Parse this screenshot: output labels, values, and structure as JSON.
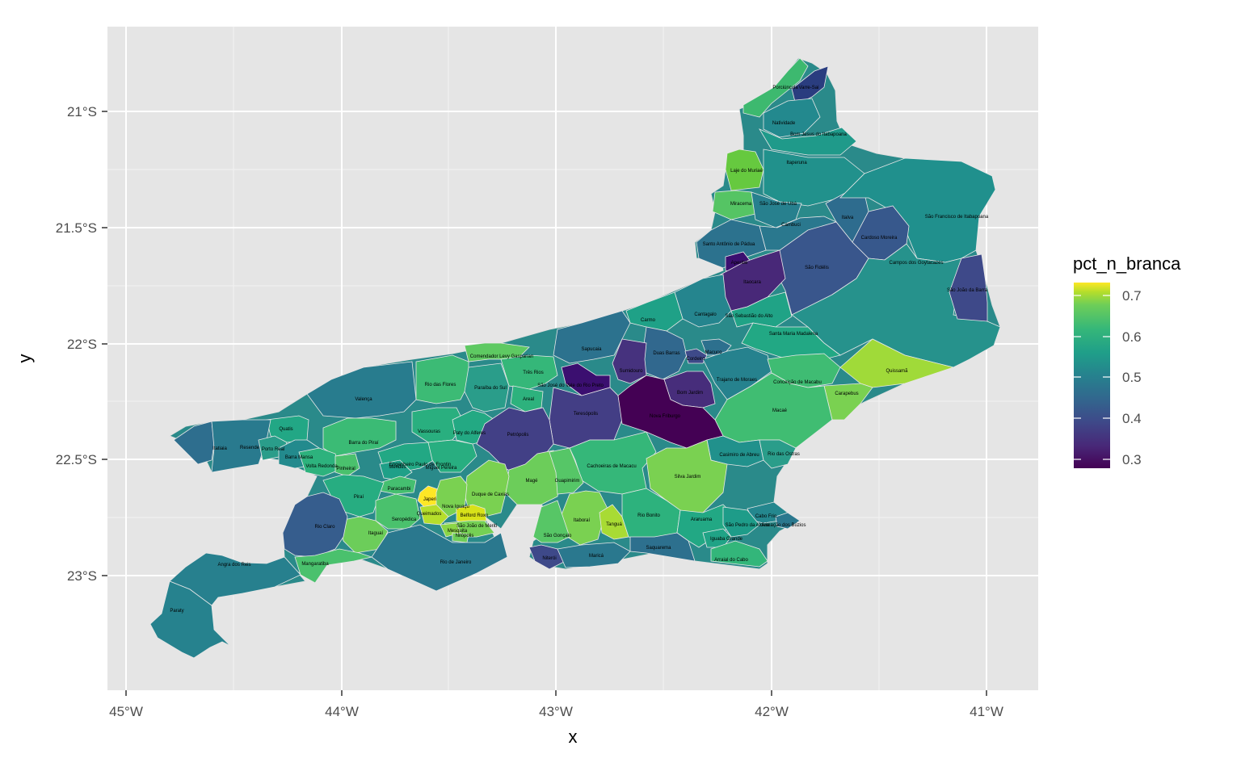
{
  "map": {
    "x_axis_title": "x",
    "y_axis_title": "y",
    "x_ticks": [
      "45°W",
      "44°W",
      "43°W",
      "42°W",
      "41°W"
    ],
    "y_ticks": [
      "21°S",
      "21.5°S",
      "22°S",
      "22.5°S",
      "23°S"
    ],
    "colors": {
      "panel": "#e5e5e5",
      "grid": "#ffffff",
      "outline": "#e0e0e0",
      "state_fill": "#2a8a8a"
    }
  },
  "legend": {
    "title": "pct_n_branca",
    "labels": [
      "0.7",
      "0.6",
      "0.5",
      "0.4",
      "0.3"
    ],
    "scale": "viridis",
    "range": [
      0.28,
      0.72
    ]
  },
  "municipalities": [
    {
      "name": "Porciúncula",
      "color": "#3db96f"
    },
    {
      "name": "Varre-Sai",
      "color": "#2a3d7f"
    },
    {
      "name": "Natividade",
      "color": "#23898e"
    },
    {
      "name": "Bom Jesus do Itabapoana",
      "color": "#1f9a8a"
    },
    {
      "name": "Laje do Muriaé",
      "color": "#66c93f"
    },
    {
      "name": "Itaperuna",
      "color": "#21918c"
    },
    {
      "name": "Miracema",
      "color": "#55c464"
    },
    {
      "name": "São José de Ubá",
      "color": "#27808e"
    },
    {
      "name": "Italva",
      "color": "#2e6c8e"
    },
    {
      "name": "São Francisco de Itabapoana",
      "color": "#20908d"
    },
    {
      "name": "Cambuci",
      "color": "#2a788e"
    },
    {
      "name": "Cardoso Moreira",
      "color": "#37588c"
    },
    {
      "name": "Santo Antônio de Pádua",
      "color": "#2c728e"
    },
    {
      "name": "Aperibé",
      "color": "#3b0f70"
    },
    {
      "name": "São Fidélis",
      "color": "#39568c"
    },
    {
      "name": "Campos dos Goytacazes",
      "color": "#26928c"
    },
    {
      "name": "Itaocara",
      "color": "#482878"
    },
    {
      "name": "São João da Barra",
      "color": "#3e4989"
    },
    {
      "name": "Cantagalo",
      "color": "#25858e"
    },
    {
      "name": "São Sebastião do Alto",
      "color": "#20a386"
    },
    {
      "name": "Carmo",
      "color": "#1fa187"
    },
    {
      "name": "Santa Maria Madalena",
      "color": "#22a884"
    },
    {
      "name": "Comendador Levy Gasparian",
      "color": "#5ec962"
    },
    {
      "name": "Sapucaia",
      "color": "#2c728e"
    },
    {
      "name": "Duas Barras",
      "color": "#31688e"
    },
    {
      "name": "Cordeiro",
      "color": "#3e4a89"
    },
    {
      "name": "Macuco",
      "color": "#2d708e"
    },
    {
      "name": "Sumidouro",
      "color": "#46327e"
    },
    {
      "name": "Rio das Flores",
      "color": "#3cbb75"
    },
    {
      "name": "Três Rios",
      "color": "#35b779"
    },
    {
      "name": "Paraíba do Sul",
      "color": "#2a9d8a"
    },
    {
      "name": "São José do Vale do Rio Preto",
      "color": "#3b0f70"
    },
    {
      "name": "Trajano de Moraes",
      "color": "#26828e"
    },
    {
      "name": "Conceição de Macabu",
      "color": "#3fbc73"
    },
    {
      "name": "Quissamã",
      "color": "#a0da39"
    },
    {
      "name": "Valença",
      "color": "#287c8e"
    },
    {
      "name": "Areal",
      "color": "#2db27d"
    },
    {
      "name": "Bom Jardim",
      "color": "#472d7b"
    },
    {
      "name": "Carapebus",
      "color": "#7ad151"
    },
    {
      "name": "Macaé",
      "color": "#40bd72"
    },
    {
      "name": "Teresópolis",
      "color": "#433e85"
    },
    {
      "name": "Nova Friburgo",
      "color": "#440154"
    },
    {
      "name": "Vassouras",
      "color": "#29af7f"
    },
    {
      "name": "Paty do Alferes",
      "color": "#23a983"
    },
    {
      "name": "Petrópolis",
      "color": "#424086"
    },
    {
      "name": "Quatis",
      "color": "#22a785"
    },
    {
      "name": "Itatiaia",
      "color": "#2e6e8e"
    },
    {
      "name": "Resende",
      "color": "#297a8e"
    },
    {
      "name": "Porto Real",
      "color": "#2a9d8a"
    },
    {
      "name": "Barra do Piraí",
      "color": "#3bbb75"
    },
    {
      "name": "Barra Mansa",
      "color": "#238a8d"
    },
    {
      "name": "Volta Redonda",
      "color": "#2db27d"
    },
    {
      "name": "Pinheiral",
      "color": "#4ac16d"
    },
    {
      "name": "Engenheiro Paulo de Frontin",
      "color": "#22a884"
    },
    {
      "name": "Mendes",
      "color": "#1fa088"
    },
    {
      "name": "Miguel Pereira",
      "color": "#28ae80"
    },
    {
      "name": "Casimiro de Abreu",
      "color": "#21918c"
    },
    {
      "name": "Rio das Ostras",
      "color": "#2a9d8a"
    },
    {
      "name": "Cachoeiras de Macacu",
      "color": "#35b779"
    },
    {
      "name": "Silva Jardim",
      "color": "#7ad151"
    },
    {
      "name": "Magé",
      "color": "#6ccd5a"
    },
    {
      "name": "Guapimirim",
      "color": "#56c667"
    },
    {
      "name": "Duque de Caxias",
      "color": "#7ad151"
    },
    {
      "name": "Paracambi",
      "color": "#45bf70"
    },
    {
      "name": "Japeri",
      "color": "#fde725"
    },
    {
      "name": "Piraí",
      "color": "#27ad81"
    },
    {
      "name": "Nova Iguaçu",
      "color": "#7ad151"
    },
    {
      "name": "Queimados",
      "color": "#b5de2b"
    },
    {
      "name": "Belford Roxo",
      "color": "#d8e219"
    },
    {
      "name": "Seropédica",
      "color": "#4ac16d"
    },
    {
      "name": "São João de Meriti",
      "color": "#75d054"
    },
    {
      "name": "Mesquita",
      "color": "#8bd646"
    },
    {
      "name": "Nilópolis",
      "color": "#6ece58"
    },
    {
      "name": "Itaguaí",
      "color": "#6ccd5a"
    },
    {
      "name": "Rio Claro",
      "color": "#365d8d"
    },
    {
      "name": "Itaboraí",
      "color": "#7ad151"
    },
    {
      "name": "Tanguá",
      "color": "#a8db34"
    },
    {
      "name": "Rio Bonito",
      "color": "#2db27d"
    },
    {
      "name": "Araruama",
      "color": "#22a884"
    },
    {
      "name": "São Gonçalo",
      "color": "#57c666"
    },
    {
      "name": "Cabo Frio",
      "color": "#24878e"
    },
    {
      "name": "São Pedro da Aldeia",
      "color": "#1e9c89"
    },
    {
      "name": "Armação dos Búzios",
      "color": "#2a788e"
    },
    {
      "name": "Iguaba Grande",
      "color": "#20a386"
    },
    {
      "name": "Saquarema",
      "color": "#2d708e"
    },
    {
      "name": "Niterói",
      "color": "#3e4989"
    },
    {
      "name": "Maricá",
      "color": "#2a788e"
    },
    {
      "name": "Arraial do Cabo",
      "color": "#33b67a"
    },
    {
      "name": "Rio de Janeiro",
      "color": "#2a788e"
    },
    {
      "name": "Mangaratiba",
      "color": "#4ac16d"
    },
    {
      "name": "Angra dos Reis",
      "color": "#27808e"
    },
    {
      "name": "Paraty",
      "color": "#26828e"
    }
  ]
}
